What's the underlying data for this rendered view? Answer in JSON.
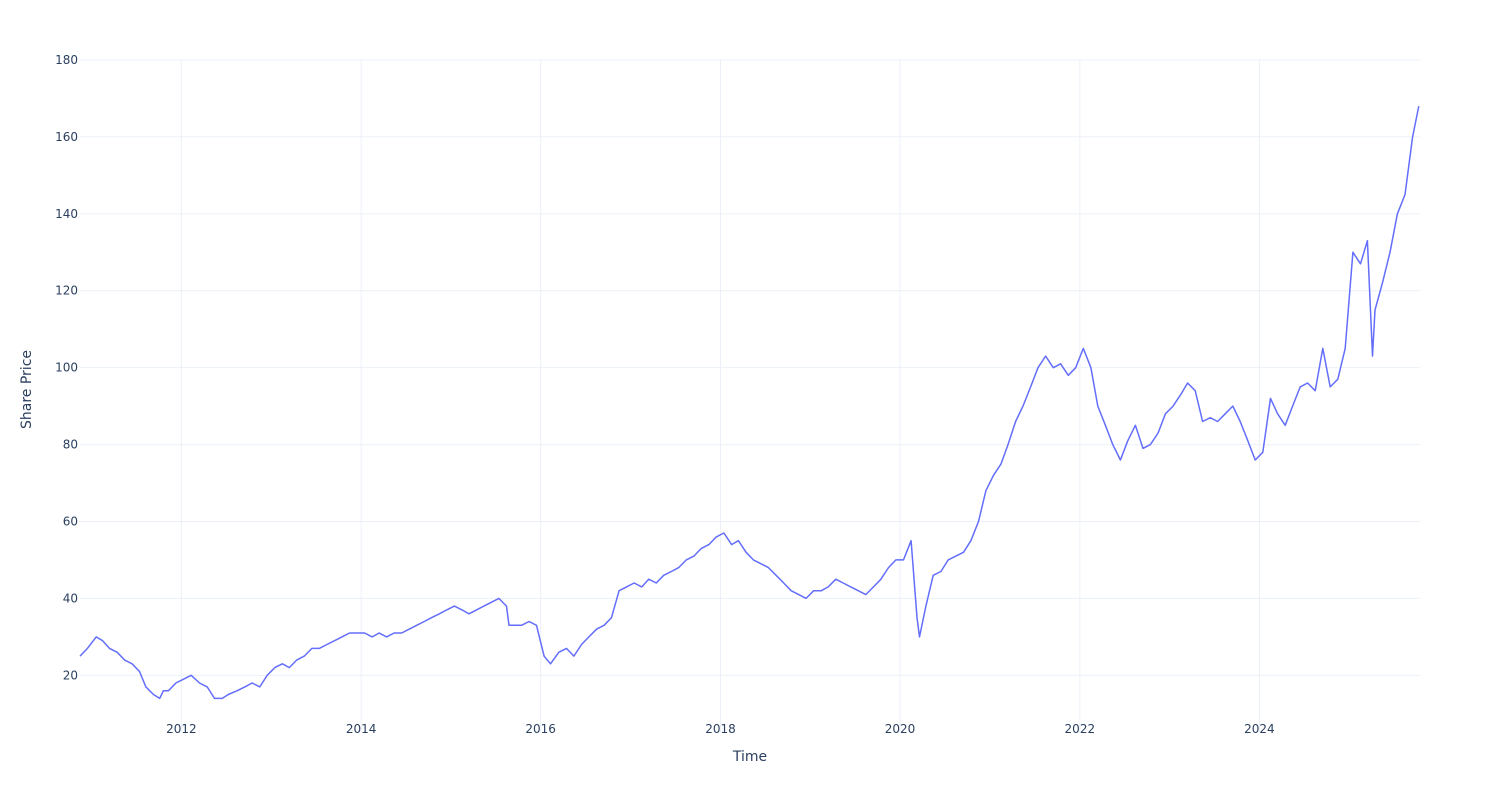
{
  "chart_data": {
    "type": "line",
    "title": "",
    "xlabel": "Time",
    "ylabel": "Share Price",
    "xlim": [
      "2010-11-15",
      "2025-10-15"
    ],
    "ylim": [
      5,
      180
    ],
    "grid": true,
    "x_ticks": [
      "2012",
      "2014",
      "2016",
      "2018",
      "2020",
      "2022",
      "2024"
    ],
    "y_ticks": [
      20,
      40,
      60,
      80,
      100,
      120,
      140,
      160,
      180
    ],
    "colors": {
      "line": "#636efa",
      "grid": "#ebf0f8",
      "text": "#2a3f5f"
    },
    "series": [
      {
        "x": [
          "2010-11-15",
          "2010-12-15",
          "2011-01-20",
          "2011-02-15",
          "2011-03-15",
          "2011-04-15",
          "2011-05-15",
          "2011-06-15",
          "2011-07-15",
          "2011-08-10",
          "2011-08-25",
          "2011-09-10",
          "2011-10-05",
          "2011-10-20",
          "2011-11-10",
          "2011-12-10",
          "2012-01-10",
          "2012-02-10",
          "2012-03-15",
          "2012-04-15",
          "2012-05-15",
          "2012-06-15",
          "2012-07-10",
          "2012-08-15",
          "2012-09-15",
          "2012-10-15",
          "2012-11-15",
          "2012-12-15",
          "2013-01-15",
          "2013-02-15",
          "2013-03-15",
          "2013-04-15",
          "2013-05-15",
          "2013-06-15",
          "2013-07-15",
          "2013-08-15",
          "2013-09-15",
          "2013-10-15",
          "2013-11-15",
          "2013-12-15",
          "2014-01-15",
          "2014-02-15",
          "2014-03-15",
          "2014-04-15",
          "2014-05-15",
          "2014-06-15",
          "2014-07-15",
          "2014-08-15",
          "2014-09-15",
          "2014-10-15",
          "2014-11-15",
          "2014-12-15",
          "2015-01-15",
          "2015-02-15",
          "2015-03-15",
          "2015-04-15",
          "2015-05-15",
          "2015-06-15",
          "2015-07-15",
          "2015-08-15",
          "2015-08-25",
          "2015-09-15",
          "2015-10-15",
          "2015-11-15",
          "2015-12-15",
          "2016-01-15",
          "2016-02-10",
          "2016-03-15",
          "2016-04-15",
          "2016-05-15",
          "2016-06-15",
          "2016-07-15",
          "2016-08-15",
          "2016-09-15",
          "2016-10-15",
          "2016-11-15",
          "2016-12-15",
          "2017-01-15",
          "2017-02-15",
          "2017-03-15",
          "2017-04-15",
          "2017-05-15",
          "2017-06-15",
          "2017-07-15",
          "2017-08-15",
          "2017-09-15",
          "2017-10-15",
          "2017-11-15",
          "2017-12-15",
          "2018-01-15",
          "2018-02-15",
          "2018-03-15",
          "2018-04-15",
          "2018-05-15",
          "2018-06-15",
          "2018-07-15",
          "2018-08-15",
          "2018-09-15",
          "2018-10-15",
          "2018-11-15",
          "2018-12-15",
          "2019-01-15",
          "2019-02-15",
          "2019-03-15",
          "2019-04-15",
          "2019-05-15",
          "2019-06-15",
          "2019-07-15",
          "2019-08-15",
          "2019-09-15",
          "2019-10-15",
          "2019-11-15",
          "2019-12-15",
          "2020-01-15",
          "2020-02-15",
          "2020-03-10",
          "2020-03-20",
          "2020-04-15",
          "2020-05-15",
          "2020-06-15",
          "2020-07-15",
          "2020-08-15",
          "2020-09-15",
          "2020-10-15",
          "2020-11-15",
          "2020-12-15",
          "2021-01-15",
          "2021-02-15",
          "2021-03-15",
          "2021-04-15",
          "2021-05-15",
          "2021-06-15",
          "2021-07-15",
          "2021-08-15",
          "2021-09-15",
          "2021-10-15",
          "2021-11-15",
          "2021-12-15",
          "2022-01-15",
          "2022-02-15",
          "2022-03-15",
          "2022-04-15",
          "2022-05-15",
          "2022-06-15",
          "2022-07-15",
          "2022-08-15",
          "2022-09-15",
          "2022-10-15",
          "2022-11-15",
          "2022-12-15",
          "2023-01-15",
          "2023-02-15",
          "2023-03-15",
          "2023-04-15",
          "2023-05-15",
          "2023-06-15",
          "2023-07-15",
          "2023-08-15",
          "2023-09-15",
          "2023-10-15",
          "2023-11-15",
          "2023-12-15",
          "2024-01-15",
          "2024-02-15",
          "2024-03-15",
          "2024-04-15",
          "2024-05-15",
          "2024-06-15",
          "2024-07-15",
          "2024-08-15",
          "2024-09-15",
          "2024-10-15",
          "2024-11-15",
          "2024-12-15",
          "2025-01-15",
          "2025-02-15",
          "2025-03-15",
          "2025-04-05",
          "2025-04-15",
          "2025-05-15",
          "2025-06-15",
          "2025-07-15",
          "2025-08-15",
          "2025-09-15",
          "2025-10-10"
        ],
        "y": [
          25,
          27,
          30,
          29,
          27,
          26,
          24,
          23,
          21,
          17,
          16,
          15,
          14,
          16,
          16,
          18,
          19,
          20,
          18,
          17,
          14,
          14,
          15,
          16,
          17,
          18,
          17,
          20,
          22,
          23,
          22,
          24,
          25,
          27,
          27,
          28,
          29,
          30,
          31,
          31,
          31,
          30,
          31,
          30,
          31,
          31,
          32,
          33,
          34,
          35,
          36,
          37,
          38,
          37,
          36,
          37,
          38,
          39,
          40,
          38,
          33,
          33,
          33,
          34,
          33,
          25,
          23,
          26,
          27,
          25,
          28,
          30,
          32,
          33,
          35,
          42,
          43,
          44,
          43,
          45,
          44,
          46,
          47,
          48,
          50,
          51,
          53,
          54,
          56,
          57,
          54,
          55,
          52,
          50,
          49,
          48,
          46,
          44,
          42,
          41,
          40,
          42,
          42,
          43,
          45,
          44,
          43,
          42,
          41,
          43,
          45,
          48,
          50,
          50,
          55,
          35,
          30,
          38,
          46,
          47,
          50,
          51,
          52,
          55,
          60,
          68,
          72,
          75,
          80,
          86,
          90,
          95,
          100,
          103,
          100,
          101,
          98,
          100,
          105,
          100,
          90,
          85,
          80,
          76,
          81,
          85,
          79,
          80,
          83,
          88,
          90,
          93,
          96,
          94,
          86,
          87,
          86,
          88,
          90,
          86,
          81,
          76,
          78,
          92,
          88,
          85,
          90,
          95,
          96,
          94,
          105,
          95,
          97,
          105,
          130,
          127,
          133,
          103,
          115,
          122,
          130,
          140,
          145,
          160,
          168
        ]
      }
    ]
  }
}
